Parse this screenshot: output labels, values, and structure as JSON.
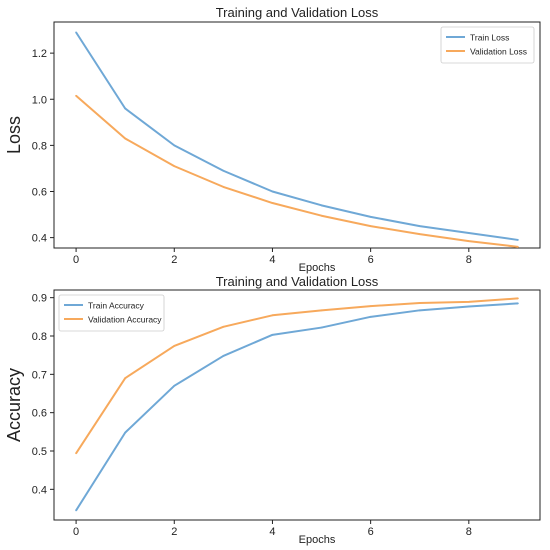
{
  "chart_data": [
    {
      "type": "line",
      "title": "Training and Validation Loss",
      "xlabel": "Epochs",
      "ylabel": "Loss",
      "x": [
        0,
        1,
        2,
        3,
        4,
        5,
        6,
        7,
        8,
        9
      ],
      "xlim": [
        -0.45,
        9.45
      ],
      "ylim": [
        0.355,
        1.335
      ],
      "xticks": [
        0,
        2,
        4,
        6,
        8
      ],
      "yticks": [
        0.4,
        0.6,
        0.8,
        1.0,
        1.2
      ],
      "ytick_labels": [
        "0.4",
        "0.6",
        "0.8",
        "1.0",
        "1.2"
      ],
      "grid": false,
      "legend_position": "top-right",
      "series": [
        {
          "name": "Train Loss",
          "color": "#6fa8d6",
          "values": [
            1.29,
            0.96,
            0.8,
            0.69,
            0.6,
            0.54,
            0.49,
            0.45,
            0.42,
            0.39
          ]
        },
        {
          "name": "Validation Loss",
          "color": "#f7a95c",
          "values": [
            1.015,
            0.83,
            0.71,
            0.62,
            0.55,
            0.495,
            0.45,
            0.415,
            0.385,
            0.36
          ]
        }
      ]
    },
    {
      "type": "line",
      "title": "Training and Validation Loss",
      "xlabel": "Epochs",
      "ylabel": "Accuracy",
      "x": [
        0,
        1,
        2,
        3,
        4,
        5,
        6,
        7,
        8,
        9
      ],
      "xlim": [
        -0.45,
        9.45
      ],
      "ylim": [
        0.32,
        0.92
      ],
      "xticks": [
        0,
        2,
        4,
        6,
        8
      ],
      "yticks": [
        0.4,
        0.5,
        0.6,
        0.7,
        0.8,
        0.9
      ],
      "ytick_labels": [
        "0.4",
        "0.5",
        "0.6",
        "0.7",
        "0.8",
        "0.9"
      ],
      "grid": false,
      "legend_position": "top-left",
      "series": [
        {
          "name": "Train Accuracy",
          "color": "#6fa8d6",
          "values": [
            0.345,
            0.548,
            0.67,
            0.748,
            0.803,
            0.822,
            0.85,
            0.867,
            0.877,
            0.885
          ]
        },
        {
          "name": "Validation Accuracy",
          "color": "#f7a95c",
          "values": [
            0.494,
            0.69,
            0.774,
            0.824,
            0.854,
            0.867,
            0.878,
            0.886,
            0.889,
            0.898
          ]
        }
      ]
    }
  ]
}
